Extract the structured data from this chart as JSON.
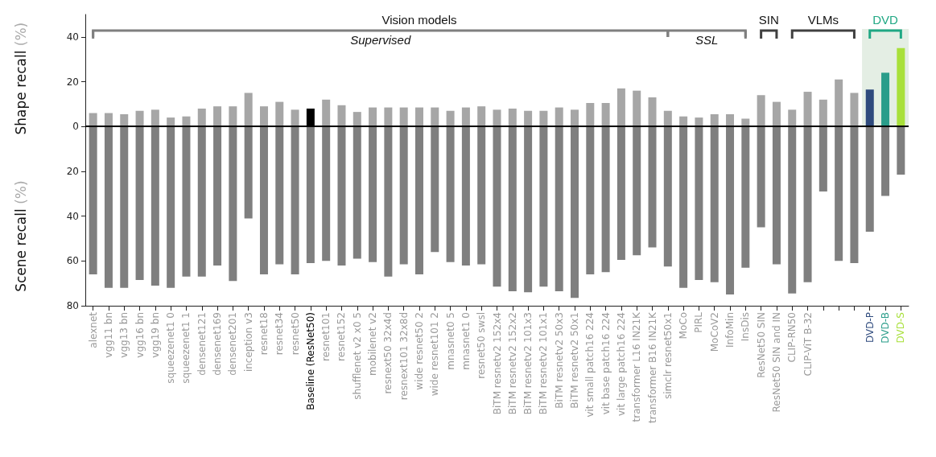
{
  "chart_data": {
    "type": "bar",
    "stacked": true,
    "ylabel": "Shape recall (%)",
    "y2label": "Scene recall (%)",
    "categories": [
      "alexnet",
      "vgg11 bn",
      "vgg13 bn",
      "vgg16 bn",
      "vgg19 bn",
      "squeezenet1 0",
      "squeezenet1 1",
      "densenet121",
      "densenet169",
      "densenet201",
      "inception v3",
      "resnet18",
      "resnet34",
      "resnet50",
      "Baseline (ResNet50)",
      "resnet101",
      "resnet152",
      "shufflenet v2 x0 5",
      "mobilenet v2",
      "resnext50 32x4d",
      "resnext101 32x8d",
      "wide resnet50 2",
      "wide resnet101 2",
      "mnasnet0 5",
      "mnasnet1 0",
      "resnet50 swsl",
      "BiTM resnetv2 152x4",
      "BiTM resnetv2 152x2",
      "BiTM resnetv2 101x3",
      "BiTM resnetv2 101x1",
      "BiTM resnetv2 50x3",
      "BiTM resnetv2 50x1",
      "vit small patch16 224",
      "vit base patch16 224",
      "vit large patch16 224",
      "transformer L16 IN21K",
      "transformer B16 IN21K",
      "simclr resnet50x1",
      "MoCo",
      "PIRL",
      "MoCoV2",
      "InfoMin",
      "InsDis",
      "ResNet50 SIN",
      "ResNet50 SIN and IN",
      "CLIP-RN50",
      "CLIP-ViT B-32",
      null,
      null,
      null,
      "DVD-P",
      "DVD-B",
      "DVD-S"
    ],
    "series": [
      {
        "color": "#a6a6a6",
        "colors": [
          "#a6a6a6",
          "#a6a6a6",
          "#a6a6a6",
          "#a6a6a6",
          "#a6a6a6",
          "#a6a6a6",
          "#a6a6a6",
          "#a6a6a6",
          "#a6a6a6",
          "#a6a6a6",
          "#a6a6a6",
          "#a6a6a6",
          "#a6a6a6",
          "#a6a6a6",
          "#000000",
          "#a6a6a6",
          "#a6a6a6",
          "#a6a6a6",
          "#a6a6a6",
          "#a6a6a6",
          "#a6a6a6",
          "#a6a6a6",
          "#a6a6a6",
          "#a6a6a6",
          "#a6a6a6",
          "#a6a6a6",
          "#a6a6a6",
          "#a6a6a6",
          "#a6a6a6",
          "#a6a6a6",
          "#a6a6a6",
          "#a6a6a6",
          "#a6a6a6",
          "#a6a6a6",
          "#a6a6a6",
          "#a6a6a6",
          "#a6a6a6",
          "#a6a6a6",
          "#a6a6a6",
          "#a6a6a6",
          "#a6a6a6",
          "#a6a6a6",
          "#a6a6a6",
          "#a6a6a6",
          "#a6a6a6",
          "#a6a6a6",
          "#a6a6a6",
          "#a6a6a6",
          "#a6a6a6",
          "#a6a6a6",
          "#2e4a7d",
          "#2a9d8a",
          "#a8e03a"
        ],
        "values": [
          6,
          6,
          5.5,
          7,
          7.5,
          4,
          4.5,
          8,
          9,
          9,
          15,
          9,
          11,
          7.5,
          8,
          12,
          9.5,
          6.5,
          8.5,
          8.5,
          8.5,
          8.5,
          8.5,
          7,
          8.5,
          9,
          7.5,
          8,
          7,
          7,
          8.5,
          7.5,
          10.5,
          10.5,
          17,
          16,
          13,
          7,
          4.5,
          4,
          5.5,
          5.5,
          3.5,
          14,
          11,
          7.5,
          15.5,
          12,
          21,
          15,
          16.5,
          24,
          35
        ]
      },
      {
        "color": "#7f7f7f",
        "values": [
          -66,
          -72,
          -72,
          -68.5,
          -71,
          -72,
          -67,
          -67,
          -62,
          -69,
          -41,
          -66,
          -61.5,
          -66,
          -61,
          -60,
          -62,
          -59,
          -60.5,
          -67,
          -61.5,
          -66,
          -56,
          -60.5,
          -62,
          -61.5,
          -71.5,
          -73.5,
          -74,
          -71.5,
          -73.5,
          -76.5,
          -66,
          -65,
          -59.5,
          -57.5,
          -54,
          -62.5,
          -72,
          -68.5,
          -69.5,
          -75,
          -63,
          -45,
          -61.5,
          -74.5,
          -69.5,
          -29,
          -60,
          -61,
          -47,
          -31,
          -21.5
        ]
      }
    ],
    "ylim": [
      -80,
      50
    ],
    "yticks": [
      {
        "value": -80,
        "label": "80"
      },
      {
        "value": -60,
        "label": "60"
      },
      {
        "value": -40,
        "label": "40"
      },
      {
        "value": -20,
        "label": "20"
      },
      0,
      20,
      40
    ],
    "ref_lines": [
      {
        "axis": "y",
        "value": 0,
        "color": "#000000"
      }
    ],
    "bands": [
      {
        "axis": "x",
        "from": "DVD-P",
        "to": "DVD-S",
        "color": "#e4eee4"
      }
    ],
    "annotations": [
      "Vision models",
      "Supervised",
      "SSL",
      "SIN",
      "VLMs",
      "DVD"
    ],
    "grid": false
  }
}
